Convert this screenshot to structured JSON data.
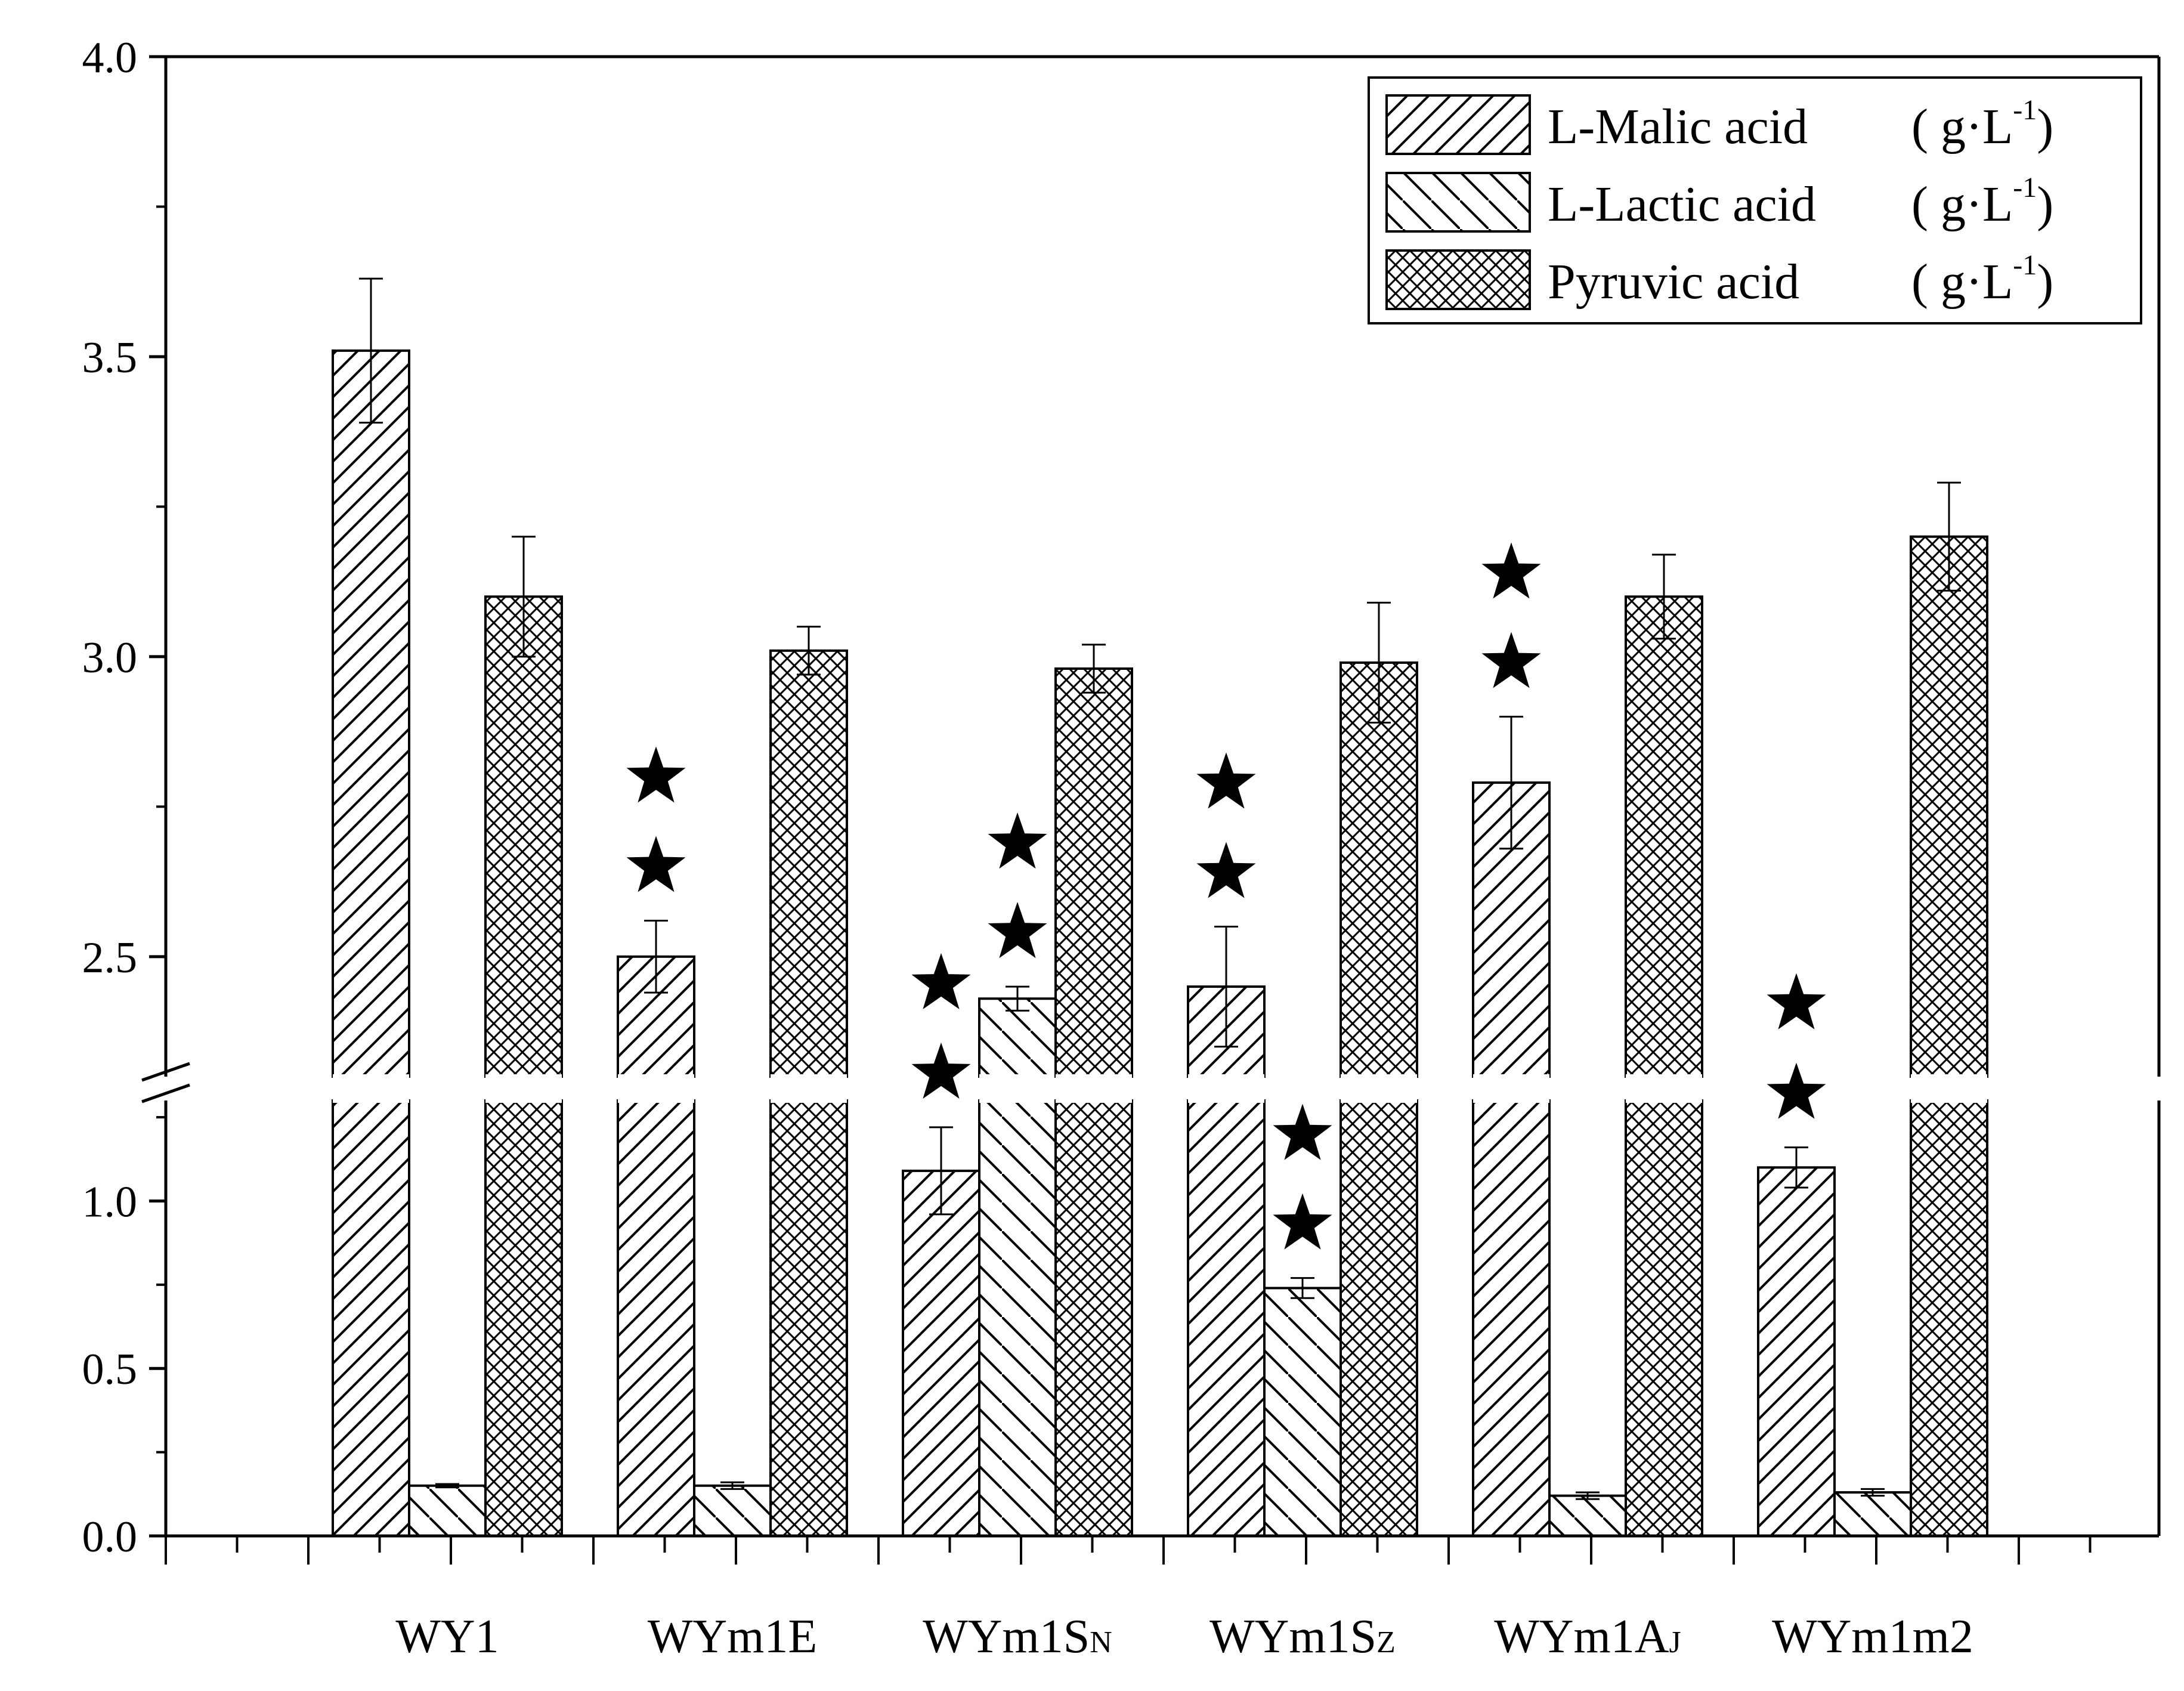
{
  "chart_data": {
    "type": "bar",
    "axis_break": {
      "lower": [
        0,
        1.3
      ],
      "upper": [
        2.3,
        4.0
      ]
    },
    "yticks_lower": [
      "0.0",
      "0.5",
      "1.0"
    ],
    "yticks_upper": [
      "2.5",
      "3.0",
      "3.5",
      "4.0"
    ],
    "categories": [
      {
        "name": "WY1",
        "main": "WY1",
        "sub": ""
      },
      {
        "name": "WYm1E",
        "main": "WYm1E",
        "sub": ""
      },
      {
        "name": "WYm1SN",
        "main": "WYm1S",
        "sub": "N"
      },
      {
        "name": "WYm1SZ",
        "main": "WYm1S",
        "sub": "Z"
      },
      {
        "name": "WYm1AJ",
        "main": "WYm1A",
        "sub": "J"
      },
      {
        "name": "WYm1m2",
        "main": "WYm1m2",
        "sub": ""
      }
    ],
    "series": [
      {
        "name": "L-Malic acid",
        "unit": "( g·L",
        "unit_sup": "-1",
        "unit_close": ")",
        "pattern": "diag-right",
        "values": [
          3.51,
          2.5,
          1.09,
          2.45,
          2.79,
          1.1
        ],
        "errors": [
          0.12,
          0.06,
          0.13,
          0.1,
          0.11,
          0.06
        ],
        "stars": [
          0,
          2,
          2,
          2,
          2,
          2
        ]
      },
      {
        "name": "L-Lactic acid",
        "unit": "( g·L",
        "unit_sup": "-1",
        "unit_close": ")",
        "pattern": "diag-left",
        "values": [
          0.15,
          0.15,
          2.43,
          0.74,
          0.12,
          0.13
        ],
        "errors": [
          0.005,
          0.01,
          0.02,
          0.03,
          0.01,
          0.01
        ],
        "stars": [
          0,
          0,
          2,
          2,
          0,
          0
        ]
      },
      {
        "name": "Pyruvic acid",
        "unit": "( g·L",
        "unit_sup": "-1",
        "unit_close": ")",
        "pattern": "crosshatch",
        "values": [
          3.1,
          3.01,
          2.98,
          2.99,
          3.1,
          3.2
        ],
        "errors": [
          0.1,
          0.04,
          0.04,
          0.1,
          0.07,
          0.09
        ],
        "stars": [
          0,
          0,
          0,
          0,
          0,
          0
        ]
      }
    ],
    "legend_position": "top-right",
    "grid": false
  }
}
